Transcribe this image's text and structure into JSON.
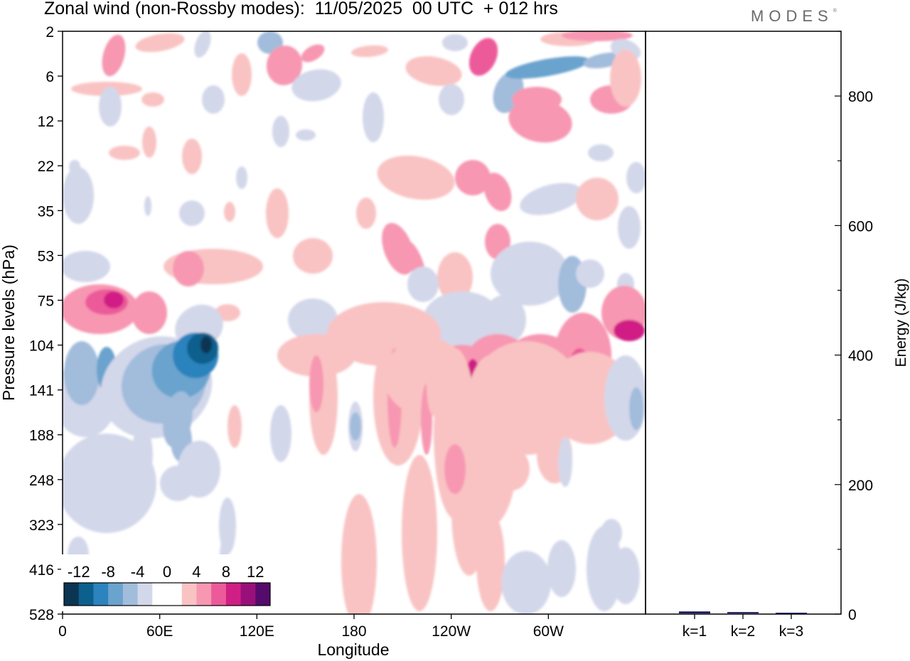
{
  "title": "Zonal wind (non-Rossby modes):  11/05/2025  00 UTC  + 012 hrs",
  "brand": "MODES",
  "chart_data": {
    "type": "heatmap",
    "title": "Zonal wind (non-Rossby modes):  11/05/2025  00 UTC  + 012 hrs",
    "xlabel": "Longitude",
    "ylabel": "Pressure levels (hPa)",
    "x_ticks": [
      "0",
      "60E",
      "120E",
      "180",
      "120W",
      "60W"
    ],
    "y_ticks": [
      "2",
      "6",
      "12",
      "22",
      "35",
      "53",
      "75",
      "104",
      "141",
      "188",
      "248",
      "323",
      "416",
      "528"
    ],
    "colorbar": {
      "labels": [
        "-12",
        "-8",
        "-4",
        "0",
        "4",
        "8",
        "12"
      ],
      "levels": [
        -14,
        -12,
        -10,
        -8,
        -6,
        -4,
        -2,
        0,
        2,
        4,
        6,
        8,
        10,
        12,
        14
      ],
      "colors": [
        "#0b3552",
        "#0d5f8d",
        "#2c83bd",
        "#6aa3cd",
        "#a2bcdc",
        "#d3d7ea",
        "#ffffff",
        "#ffffff",
        "#f9c3c3",
        "#f797b2",
        "#ec5a9a",
        "#d01f84",
        "#9a107a",
        "#560a6c"
      ]
    },
    "features": [
      {
        "lon": 80,
        "level": 120,
        "value": -13
      },
      {
        "lon": 85,
        "level": 110,
        "value": -12
      },
      {
        "lon": 50,
        "level": 141,
        "value": -9
      },
      {
        "lon": 20,
        "level": 130,
        "value": -7
      },
      {
        "lon": 60,
        "level": 190,
        "value": -6
      },
      {
        "lon": 25,
        "level": 75,
        "value": 9
      },
      {
        "lon": 50,
        "level": 80,
        "value": 6
      },
      {
        "lon": 290,
        "level": 130,
        "value": 9
      },
      {
        "lon": 240,
        "level": 135,
        "value": 8
      },
      {
        "lon": 355,
        "level": 95,
        "value": 9
      },
      {
        "lon": 195,
        "level": 170,
        "value": 5
      },
      {
        "lon": 260,
        "level": 5,
        "value": 8
      },
      {
        "lon": 282,
        "level": 5,
        "value": -7
      },
      {
        "lon": 242,
        "level": 85,
        "value": -7
      },
      {
        "lon": 318,
        "level": 70,
        "value": -7
      }
    ],
    "energy_panel": {
      "ylabel": "Energy (J/kg)",
      "y_ticks": [
        "0",
        "200",
        "400",
        "600",
        "800"
      ],
      "ylim": [
        0,
        900
      ],
      "type": "bar",
      "categories": [
        "k=1",
        "k=2",
        "k=3"
      ],
      "values": [
        3,
        2,
        1
      ],
      "bar_color": "#1a1a5e"
    }
  }
}
